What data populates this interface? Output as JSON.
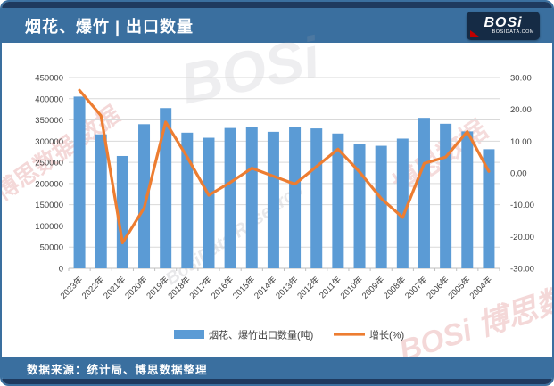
{
  "header": {
    "title": "烟花、爆竹 | 出口数量",
    "logo_text": "BOSi",
    "logo_sub": "BOSIDATA.COM"
  },
  "footer": {
    "source": "数据来源：统计局、博思数据整理"
  },
  "watermarks": {
    "ghost": "BOSi",
    "pink_left": "博思数据 数据",
    "gray_center": "BosiData Research",
    "pink_right": "博思数据",
    "pink_bottom": "BOSi 博思数据"
  },
  "colors": {
    "bar": "#5B9BD5",
    "line": "#ED7D31",
    "grid": "#D9D9D9",
    "axis_line": "#BFBFBF",
    "axis_text": "#404040",
    "header_bg": "#3a6f9f",
    "header_dark": "#1e3a5f",
    "logo_red": "#c00000"
  },
  "chart_data": {
    "type": "bar",
    "subtype": "combo-bar-line",
    "categories": [
      "2023年",
      "2022年",
      "2021年",
      "2020年",
      "2019年",
      "2018年",
      "2017年",
      "2016年",
      "2015年",
      "2014年",
      "2013年",
      "2012年",
      "2011年",
      "2010年",
      "2009年",
      "2008年",
      "2007年",
      "2006年",
      "2005年",
      "2004年"
    ],
    "series": [
      {
        "name": "烟花、爆竹出口数量(吨)",
        "type": "bar",
        "axis": "left",
        "values": [
          405000,
          316000,
          265000,
          340000,
          378000,
          320000,
          308000,
          331000,
          334000,
          322000,
          334000,
          330000,
          318000,
          294000,
          289000,
          306000,
          355000,
          341000,
          323000,
          281000
        ]
      },
      {
        "name": "增长(%)",
        "type": "line",
        "axis": "right",
        "values": [
          26,
          18,
          -22,
          -11,
          16,
          5,
          -7,
          -3,
          1.5,
          -1,
          -3.5,
          2,
          7.5,
          0.3,
          -8,
          -14,
          3,
          5,
          13,
          0.5
        ]
      }
    ],
    "left_axis": {
      "min": 0,
      "max": 450000,
      "step": 50000
    },
    "right_axis": {
      "min": -30,
      "max": 30,
      "step": 10,
      "decimals": 2
    },
    "grid": "horizontal",
    "legend_position": "bottom"
  }
}
